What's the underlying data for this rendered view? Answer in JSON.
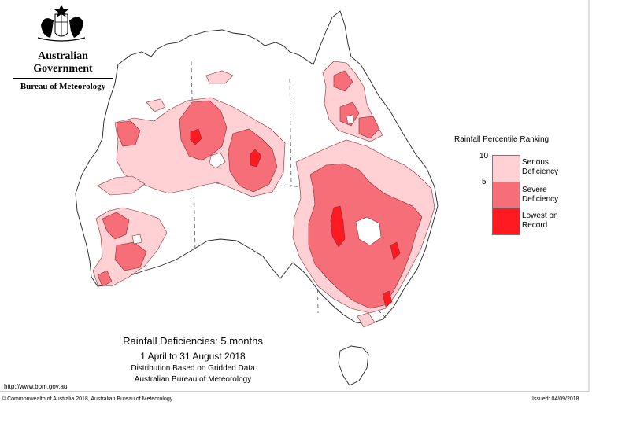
{
  "header": {
    "government": "Australian Government",
    "bureau": "Bureau of Meteorology"
  },
  "legend": {
    "title": "Rainfall Percentile Ranking",
    "ticks": [
      "10",
      "5"
    ],
    "items": [
      {
        "label_line1": "Serious",
        "label_line2": "Deficiency",
        "color": "#ffd0d4"
      },
      {
        "label_line1": "Severe",
        "label_line2": "Deficiency",
        "color": "#f56e78"
      },
      {
        "label_line1": "Lowest on",
        "label_line2": "Record",
        "color": "#ff1a22"
      }
    ]
  },
  "caption": {
    "title": "Rainfall Deficiencies: 5 months",
    "period": "1 April to 31 August 2018",
    "line3": "Distribution Based on Gridded Data",
    "line4": "Australian Bureau of Meteorology"
  },
  "footer": {
    "url": "http://www.bom.gov.au",
    "copyright": "© Commonwealth of Australia 2018, Australian Bureau of Meteorology",
    "issued": "Issued: 04/09/2018"
  },
  "colors": {
    "serious": "#ffd0d4",
    "severe": "#f56e78",
    "lowest": "#ff1a22",
    "outline": "#8a2a30"
  }
}
